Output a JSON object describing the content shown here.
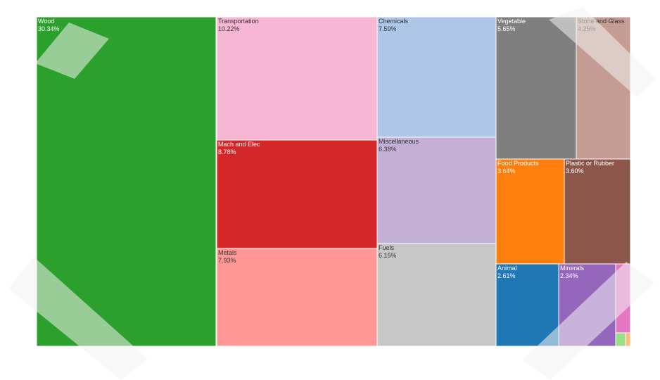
{
  "chart_data": {
    "type": "treemap",
    "unit": "%",
    "tiles": [
      {
        "label": "Wood",
        "value": 30.34,
        "value_label": "30.34%",
        "color": "#2ca02c"
      },
      {
        "label": "Transportation",
        "value": 10.22,
        "value_label": "10.22%",
        "color": "#f7b6d2"
      },
      {
        "label": "Mach and Elec",
        "value": 8.78,
        "value_label": "8.78%",
        "color": "#d62728"
      },
      {
        "label": "Metals",
        "value": 7.93,
        "value_label": "7.93%",
        "color": "#ff9896"
      },
      {
        "label": "Chemicals",
        "value": 7.59,
        "value_label": "7.59%",
        "color": "#aec7e8"
      },
      {
        "label": "Miscellaneous",
        "value": 6.38,
        "value_label": "6.38%",
        "color": "#c5b0d5"
      },
      {
        "label": "Fuels",
        "value": 6.15,
        "value_label": "6.15%",
        "color": "#c7c7c7"
      },
      {
        "label": "Vegetable",
        "value": 5.65,
        "value_label": "5.65%",
        "color": "#7f7f7f"
      },
      {
        "label": "Stone and Glass",
        "value": 4.25,
        "value_label": "4.25%",
        "color": "#c49c94"
      },
      {
        "label": "Food Products",
        "value": 3.64,
        "value_label": "3.64%",
        "color": "#ff7f0e"
      },
      {
        "label": "Plastic or Rubber",
        "value": 3.6,
        "value_label": "3.60%",
        "color": "#8c564b"
      },
      {
        "label": "Animal",
        "value": 2.61,
        "value_label": "2.61%",
        "color": "#1f77b4"
      },
      {
        "label": "Minerals",
        "value": 2.34,
        "value_label": "2.34%",
        "color": "#9467bd"
      },
      {
        "label": "",
        "value": 1.2,
        "value_label": "",
        "color": "#e377c2"
      },
      {
        "label": "",
        "value": 0.25,
        "value_label": "",
        "color": "#98df8a"
      },
      {
        "label": "",
        "value": 0.15,
        "value_label": "",
        "color": "#ffbb78"
      }
    ]
  }
}
